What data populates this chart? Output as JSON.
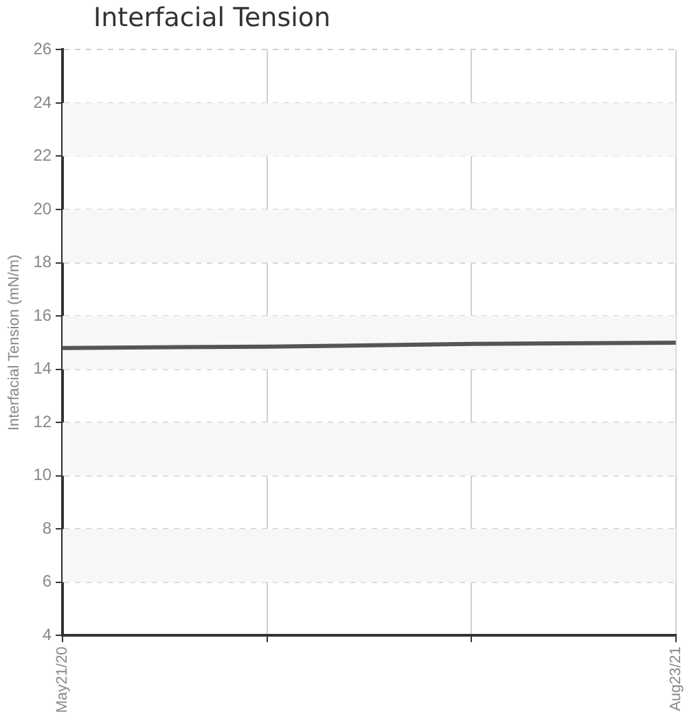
{
  "chart_data": {
    "type": "line",
    "title": "Interfacial Tension",
    "ylabel": "Interfacial Tension (mN/m)",
    "categories": [
      "May21/20",
      null,
      null,
      "Aug23/21"
    ],
    "series": [
      {
        "color": "#555555",
        "values": [
          14.8,
          14.85,
          14.95,
          15.0
        ]
      }
    ],
    "ylim": [
      4,
      26
    ],
    "yticks": [
      4,
      6,
      8,
      10,
      12,
      14,
      16,
      18,
      20,
      22,
      24,
      26
    ],
    "bands": [
      {
        "axis": "y",
        "from": 6,
        "to": 8,
        "color": "#f7f7f7"
      },
      {
        "axis": "y",
        "from": 10,
        "to": 12,
        "color": "#f7f7f7"
      },
      {
        "axis": "y",
        "from": 14,
        "to": 16,
        "color": "#f7f7f7"
      },
      {
        "axis": "y",
        "from": 18,
        "to": 20,
        "color": "#f7f7f7"
      },
      {
        "axis": "y",
        "from": 22,
        "to": 24,
        "color": "#f7f7f7"
      }
    ],
    "grid": true,
    "marker": "none",
    "line_style": "solid",
    "legend": false
  }
}
